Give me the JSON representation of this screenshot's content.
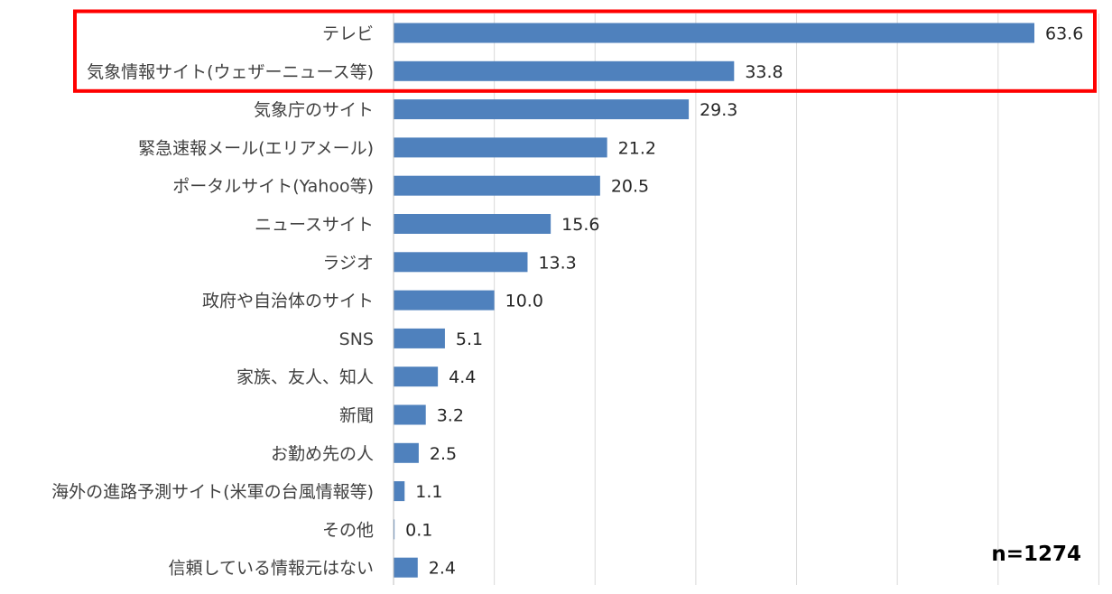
{
  "chart_data": {
    "type": "bar",
    "orientation": "horizontal",
    "categories": [
      "テレビ",
      "気象情報サイト(ウェザーニュース等)",
      "気象庁のサイト",
      "緊急速報メール(エリアメール)",
      "ポータルサイト(Yahoo等)",
      "ニュースサイト",
      "ラジオ",
      "政府や自治体のサイト",
      "SNS",
      "家族、友人、知人",
      "新聞",
      "お勤め先の人",
      "海外の進路予測サイト(米軍の台風情報等)",
      "その他",
      "信頼している情報元はない"
    ],
    "values": [
      63.6,
      33.8,
      29.3,
      21.2,
      20.5,
      15.6,
      13.3,
      10.0,
      5.1,
      4.4,
      3.2,
      2.5,
      1.1,
      0.1,
      2.4
    ],
    "value_labels": [
      "63.6",
      "33.8",
      "29.3",
      "21.2",
      "20.5",
      "15.6",
      "13.3",
      "10.0",
      "5.1",
      "4.4",
      "3.2",
      "2.5",
      "1.1",
      "0.1",
      "2.4"
    ],
    "xlim": [
      0,
      70
    ],
    "grid": "vertical",
    "bar_color": "#4f81bd",
    "highlight_color": "#ff0000",
    "highlighted_categories": [
      0,
      1
    ],
    "sample_note": "n=1274"
  }
}
